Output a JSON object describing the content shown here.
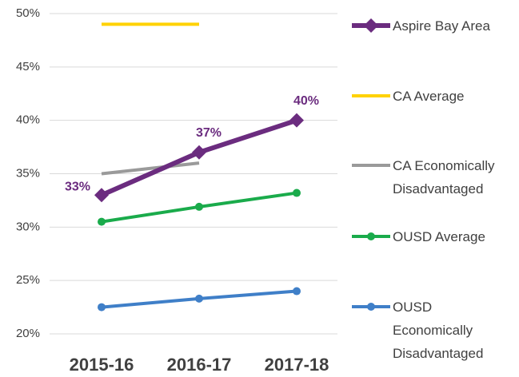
{
  "chart_data": {
    "type": "line",
    "categories": [
      "2015-16",
      "2016-17",
      "2017-18"
    ],
    "series": [
      {
        "name": "Aspire Bay Area",
        "color": "#6b2c7f",
        "marker": "diamond",
        "values": [
          33,
          37,
          40
        ],
        "value_labels": [
          "33%",
          "37%",
          "40%"
        ]
      },
      {
        "name": "CA Average",
        "color": "#ffd200",
        "values": [
          49,
          49,
          null
        ]
      },
      {
        "name": "CA Economically Disadvantaged",
        "color": "#9a9a9a",
        "values": [
          35,
          36,
          null
        ]
      },
      {
        "name": "OUSD Average",
        "color": "#1aab4b",
        "marker": "circle",
        "values": [
          30.5,
          31.9,
          33.2
        ]
      },
      {
        "name": "OUSD Economically Disadvantaged",
        "color": "#3f7fc8",
        "marker": "circle",
        "values": [
          22.5,
          23.3,
          24.0
        ]
      }
    ],
    "ylim": [
      20,
      50
    ],
    "yticks": [
      {
        "value": 20,
        "label": "20%"
      },
      {
        "value": 25,
        "label": "25%"
      },
      {
        "value": 30,
        "label": "30%"
      },
      {
        "value": 35,
        "label": "35%"
      },
      {
        "value": 40,
        "label": "40%"
      },
      {
        "value": 45,
        "label": "45%"
      },
      {
        "value": 50,
        "label": "50%"
      }
    ],
    "grid": true,
    "legend": "right"
  }
}
